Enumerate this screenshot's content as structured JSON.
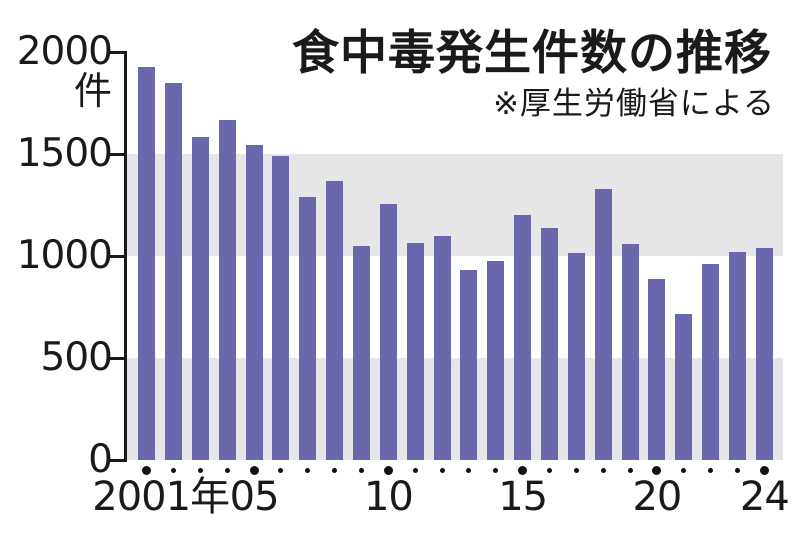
{
  "title": "食中毒発生件数の推移",
  "subtitle": "※厚生労働省による",
  "colors": {
    "bar": "#6a67ad",
    "band": "#e6e6e9",
    "ink": "#1a1a1a",
    "background": "#ffffff"
  },
  "y_axis": {
    "unit_label": "件",
    "tick_labels": [
      "2000",
      "1500",
      "1000",
      "500",
      "0"
    ],
    "tick_values": [
      2000,
      1500,
      1000,
      500,
      0
    ]
  },
  "x_axis": {
    "tick_labels": [
      {
        "year": 2001,
        "text": "2001年"
      },
      {
        "year": 2005,
        "text": "05"
      },
      {
        "year": 2010,
        "text": "10"
      },
      {
        "year": 2015,
        "text": "15"
      },
      {
        "year": 2020,
        "text": "20"
      },
      {
        "year": 2024,
        "text": "24"
      }
    ]
  },
  "chart_data": {
    "type": "bar",
    "title": "食中毒発生件数の推移",
    "source_note": "※厚生労働省による",
    "xlabel": "年",
    "ylabel": "件",
    "ylim": [
      0,
      2000
    ],
    "grid": "alternating horizontal gray bands (0-500 and 1000-1500)",
    "gray_bands": [
      [
        0,
        500
      ],
      [
        1000,
        1500
      ]
    ],
    "legend_position": "none",
    "categories": [
      2001,
      2002,
      2003,
      2004,
      2005,
      2006,
      2007,
      2008,
      2009,
      2010,
      2011,
      2012,
      2013,
      2014,
      2015,
      2016,
      2017,
      2018,
      2019,
      2020,
      2021,
      2022,
      2023,
      2024
    ],
    "values": [
      1928,
      1850,
      1585,
      1666,
      1545,
      1491,
      1289,
      1369,
      1048,
      1254,
      1062,
      1100,
      931,
      976,
      1202,
      1139,
      1014,
      1330,
      1061,
      887,
      717,
      962,
      1021,
      1037
    ],
    "major_tick_years": [
      2001,
      2005,
      2010,
      2015,
      2020,
      2024
    ]
  }
}
